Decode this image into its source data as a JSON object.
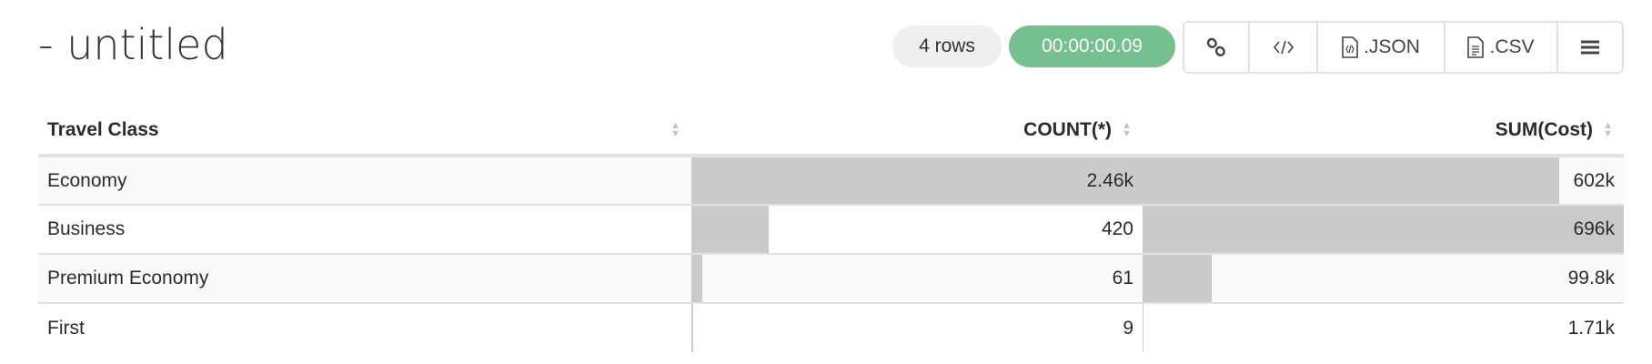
{
  "title": "- untitled",
  "status": {
    "rows": "4 rows",
    "duration": "00:00:00.09",
    "duration_color": "#76c08f"
  },
  "toolbar": {
    "link_icon": "link-icon",
    "embed_icon": "code-icon",
    "json_label": ".JSON",
    "csv_label": ".CSV",
    "menu_icon": "hamburger-icon"
  },
  "table": {
    "columns": [
      "Travel Class",
      "COUNT(*)",
      "SUM(Cost)"
    ],
    "rows": [
      {
        "label": "Economy",
        "count": "2.46k",
        "count_value": 2460,
        "sum": "602k",
        "sum_value": 602000
      },
      {
        "label": "Business",
        "count": "420",
        "count_value": 420,
        "sum": "696k",
        "sum_value": 696000
      },
      {
        "label": "Premium Economy",
        "count": "61",
        "count_value": 61,
        "sum": "99.8k",
        "sum_value": 99800
      },
      {
        "label": "First",
        "count": "9",
        "count_value": 9,
        "sum": "1.71k",
        "sum_value": 1710
      }
    ]
  }
}
